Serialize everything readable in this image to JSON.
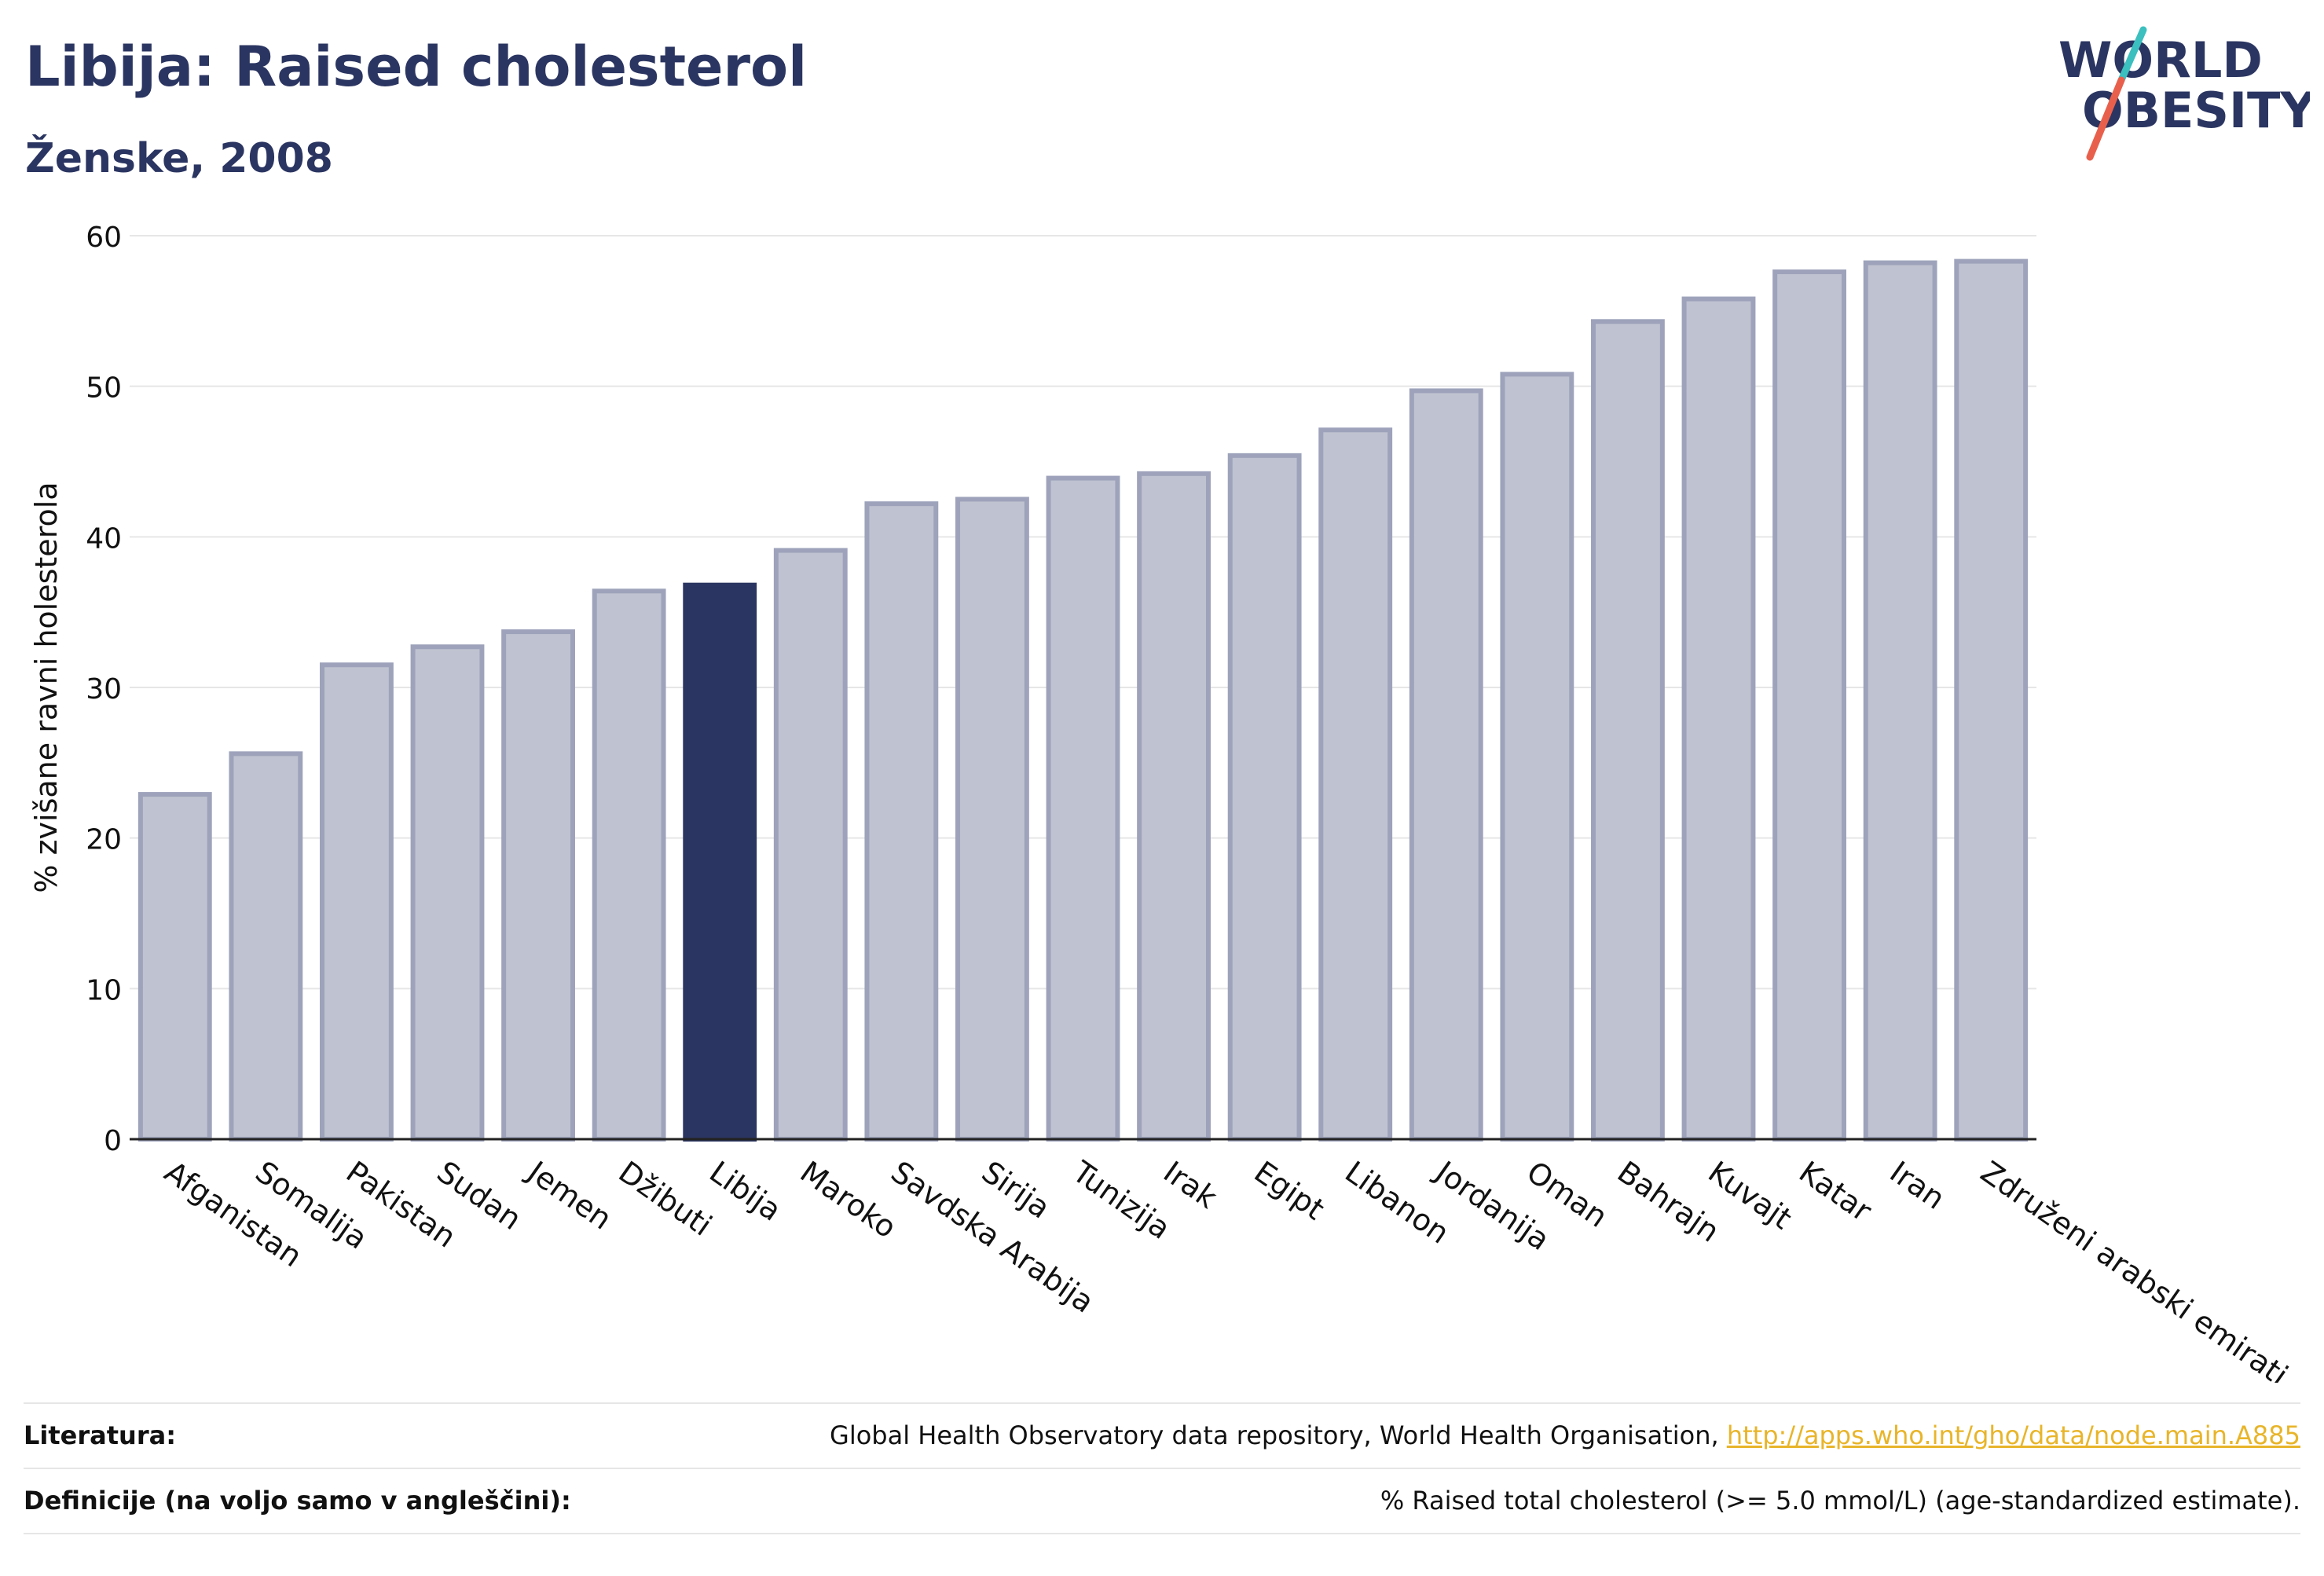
{
  "header": {
    "title": "Libija: Raised cholesterol",
    "subtitle": "Ženske, 2008"
  },
  "logo": {
    "line1": "WORLD",
    "line2": "OBESITY",
    "colors": {
      "text": "#2b3561",
      "slash_top": "#3bbfbf",
      "slash_bottom": "#e8604c"
    }
  },
  "colors": {
    "bar": "#bfc2d0",
    "bar_stroke": "#9ea3bb",
    "highlight": "#2b3561",
    "grid": "#e6e6e6",
    "axis": "#222222"
  },
  "chart_data": {
    "type": "bar",
    "title": "Libija: Raised cholesterol",
    "subtitle": "Ženske, 2008",
    "xlabel": "",
    "ylabel": "% zvišane ravni holesterola",
    "ylim": [
      0,
      60
    ],
    "yticks": [
      0,
      10,
      20,
      30,
      40,
      50,
      60
    ],
    "grid": true,
    "highlight": "Libija",
    "categories": [
      "Afganistan",
      "Somalija",
      "Pakistan",
      "Sudan",
      "Jemen",
      "Džibuti",
      "Libija",
      "Maroko",
      "Savdska Arabija",
      "Sirija",
      "Tunizija",
      "Irak",
      "Egipt",
      "Libanon",
      "Jordanija",
      "Oman",
      "Bahrajn",
      "Kuvajt",
      "Katar",
      "Iran",
      "Združeni arabski emirati"
    ],
    "values": [
      22.9,
      25.6,
      31.5,
      32.7,
      33.7,
      36.4,
      36.8,
      39.1,
      42.2,
      42.5,
      43.9,
      44.2,
      45.4,
      47.1,
      49.7,
      50.8,
      54.3,
      55.8,
      57.6,
      58.2,
      58.3
    ]
  },
  "footer": {
    "sources_label": "Literatura:",
    "sources_text": "Global Health Observatory data repository, World Health Organisation, ",
    "sources_link": "http://apps.who.int/gho/data/node.main.A885",
    "definitions_label": "Definicije (na voljo samo v angleščini):",
    "definitions_text": "% Raised total cholesterol (>= 5.0 mmol/L) (age-standardized estimate)."
  }
}
